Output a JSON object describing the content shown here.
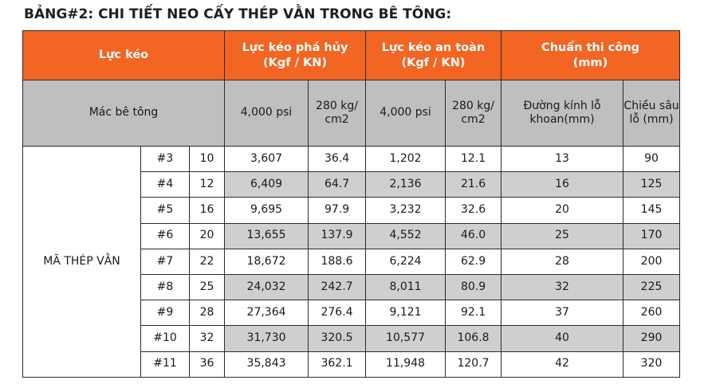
{
  "title": "BẢNG#2: CHI TIẾT NEO CẤY THÉP VẰN TRONG BÊ TÔNG:",
  "header": {
    "luc_keo": "Lực kéo",
    "luc_keo_pha_huy_line1": "Lực kéo phá hủy",
    "luc_keo_pha_huy_line2": "(Kgf / KN)",
    "luc_keo_an_toan_line1": "Lực kéo an toàn",
    "luc_keo_an_toan_line2": "(Kgf / KN)",
    "chuan_thi_cong_line1": "Chuẩn thi công",
    "chuan_thi_cong_line2": "(mm)",
    "mac_be_tong": "Mác bê tông",
    "psi_1": "4,000 psi",
    "kg_cm2_1_line1": "280 kg/",
    "kg_cm2_1_line2": "cm2",
    "psi_2": "4,000 psi",
    "kg_cm2_2_line1": "280 kg/",
    "kg_cm2_2_line2": "cm2",
    "duong_kinh_line1": "Đường kính lỗ",
    "duong_kinh_line2": "khoan(mm)",
    "chieu_sau_line1": "Chiều sâu",
    "chieu_sau_line2": "lỗ (mm)"
  },
  "row_label": "MÃ THÉP VẰN",
  "rows": [
    {
      "code": "#3",
      "dia": "10",
      "ph_psi": "3,607",
      "ph_kg": "36.4",
      "at_psi": "1,202",
      "at_kg": "12.1",
      "dk": "13",
      "cs": "90"
    },
    {
      "code": "#4",
      "dia": "12",
      "ph_psi": "6,409",
      "ph_kg": "64.7",
      "at_psi": "2,136",
      "at_kg": "21.6",
      "dk": "16",
      "cs": "125"
    },
    {
      "code": "#5",
      "dia": "16",
      "ph_psi": "9,695",
      "ph_kg": "97.9",
      "at_psi": "3,232",
      "at_kg": "32.6",
      "dk": "20",
      "cs": "145"
    },
    {
      "code": "#6",
      "dia": "20",
      "ph_psi": "13,655",
      "ph_kg": "137.9",
      "at_psi": "4,552",
      "at_kg": "46.0",
      "dk": "25",
      "cs": "170"
    },
    {
      "code": "#7",
      "dia": "22",
      "ph_psi": "18,672",
      "ph_kg": "188.6",
      "at_psi": "6,224",
      "at_kg": "62.9",
      "dk": "28",
      "cs": "200"
    },
    {
      "code": "#8",
      "dia": "25",
      "ph_psi": "24,032",
      "ph_kg": "242.7",
      "at_psi": "8,011",
      "at_kg": "80.9",
      "dk": "32",
      "cs": "225"
    },
    {
      "code": "#9",
      "dia": "28",
      "ph_psi": "27,364",
      "ph_kg": "276.4",
      "at_psi": "9,121",
      "at_kg": "92.1",
      "dk": "37",
      "cs": "260"
    },
    {
      "code": "#10",
      "dia": "32",
      "ph_psi": "31,730",
      "ph_kg": "320.5",
      "at_psi": "10,577",
      "at_kg": "106.8",
      "dk": "40",
      "cs": "290"
    },
    {
      "code": "#11",
      "dia": "36",
      "ph_psi": "35,843",
      "ph_kg": "362.1",
      "at_psi": "11,948",
      "at_kg": "120.7",
      "dk": "42",
      "cs": "320"
    }
  ],
  "colors": {
    "header_orange": "#f26522",
    "header_gray": "#bfbfbf",
    "row_gray": "#cfcfcf",
    "row_white": "#ffffff"
  }
}
